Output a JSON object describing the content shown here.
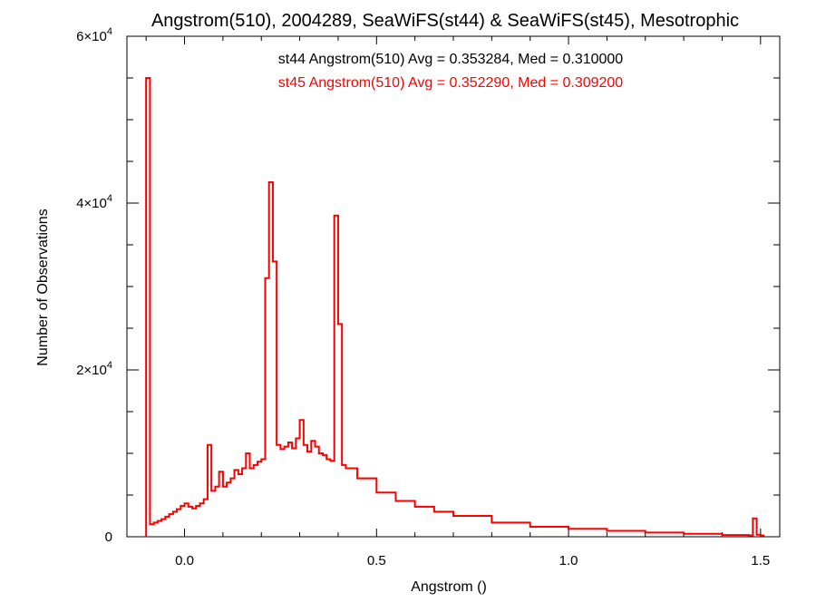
{
  "chart_data": {
    "type": "line",
    "title": "Angstrom(510), 2004289, SeaWiFS(st44) & SeaWiFS(st45), Mesotrophic",
    "xlabel": "Angstrom ()",
    "ylabel": "Number of Observations",
    "xlim": [
      -0.15,
      1.55
    ],
    "ylim": [
      0,
      60000
    ],
    "x_ticks": [
      {
        "value": 0.0,
        "label": "0.0"
      },
      {
        "value": 0.5,
        "label": "0.5"
      },
      {
        "value": 1.0,
        "label": "1.0"
      },
      {
        "value": 1.5,
        "label": "1.5"
      }
    ],
    "y_ticks": [
      {
        "value": 0,
        "base": "0",
        "exp": ""
      },
      {
        "value": 20000,
        "base": "2×10",
        "exp": "4"
      },
      {
        "value": 40000,
        "base": "4×10",
        "exp": "4"
      },
      {
        "value": 60000,
        "base": "6×10",
        "exp": "4"
      }
    ],
    "annotations": [
      {
        "text": "st44 Angstrom(510) Avg = 0.353284, Med = 0.310000",
        "color": "#000000"
      },
      {
        "text": "st45 Angstrom(510) Avg = 0.352290, Med = 0.309200",
        "color": "#ff0000"
      }
    ],
    "series": [
      {
        "color": "#000000",
        "x": [
          -0.1,
          -0.09,
          -0.08,
          -0.07,
          -0.06,
          -0.05,
          -0.04,
          -0.03,
          -0.02,
          -0.01,
          0.0,
          0.01,
          0.02,
          0.03,
          0.04,
          0.05,
          0.06,
          0.07,
          0.08,
          0.09,
          0.1,
          0.11,
          0.12,
          0.13,
          0.14,
          0.15,
          0.16,
          0.17,
          0.18,
          0.19,
          0.2,
          0.21,
          0.22,
          0.23,
          0.24,
          0.25,
          0.26,
          0.27,
          0.28,
          0.29,
          0.3,
          0.31,
          0.32,
          0.33,
          0.34,
          0.35,
          0.36,
          0.37,
          0.38,
          0.39,
          0.4,
          0.41,
          0.42,
          0.45,
          0.5,
          0.55,
          0.6,
          0.65,
          0.7,
          0.8,
          0.9,
          1.0,
          1.1,
          1.2,
          1.3,
          1.4,
          1.47,
          1.48,
          1.49,
          1.5
        ],
        "y": [
          55000,
          1500,
          1700,
          1900,
          2100,
          2400,
          2700,
          3000,
          3300,
          3700,
          4000,
          3600,
          3400,
          3700,
          4000,
          4500,
          11000,
          5500,
          6000,
          7800,
          6000,
          6500,
          7000,
          8000,
          7500,
          8200,
          10000,
          8200,
          8600,
          9000,
          9300,
          31000,
          42500,
          33000,
          11000,
          10500,
          10800,
          11300,
          10600,
          11800,
          14000,
          11000,
          10200,
          11500,
          10800,
          10000,
          9800,
          9300,
          9100,
          38500,
          25500,
          8600,
          8200,
          7000,
          5300,
          4300,
          3600,
          3000,
          2500,
          1700,
          1200,
          950,
          700,
          500,
          350,
          200,
          150,
          2200,
          250,
          150
        ]
      },
      {
        "color": "#ff0000",
        "x": [
          -0.1,
          -0.09,
          -0.08,
          -0.07,
          -0.06,
          -0.05,
          -0.04,
          -0.03,
          -0.02,
          -0.01,
          0.0,
          0.01,
          0.02,
          0.03,
          0.04,
          0.05,
          0.06,
          0.07,
          0.08,
          0.09,
          0.1,
          0.11,
          0.12,
          0.13,
          0.14,
          0.15,
          0.16,
          0.17,
          0.18,
          0.19,
          0.2,
          0.21,
          0.22,
          0.23,
          0.24,
          0.25,
          0.26,
          0.27,
          0.28,
          0.29,
          0.3,
          0.31,
          0.32,
          0.33,
          0.34,
          0.35,
          0.36,
          0.37,
          0.38,
          0.39,
          0.4,
          0.41,
          0.42,
          0.45,
          0.5,
          0.55,
          0.6,
          0.65,
          0.7,
          0.8,
          0.9,
          1.0,
          1.1,
          1.2,
          1.3,
          1.4,
          1.47,
          1.48,
          1.49,
          1.5
        ],
        "y": [
          55000,
          1500,
          1700,
          1900,
          2100,
          2400,
          2700,
          3000,
          3300,
          3700,
          4000,
          3600,
          3400,
          3700,
          4000,
          4500,
          11000,
          5500,
          6000,
          7800,
          6000,
          6500,
          7000,
          8000,
          7500,
          8200,
          10000,
          8200,
          8600,
          9000,
          9300,
          31000,
          42500,
          33000,
          11000,
          10500,
          10800,
          11300,
          10600,
          11800,
          14000,
          11000,
          10200,
          11500,
          10800,
          10000,
          9800,
          9300,
          9100,
          38500,
          25500,
          8600,
          8200,
          7000,
          5300,
          4300,
          3600,
          3000,
          2500,
          1700,
          1200,
          950,
          700,
          500,
          350,
          200,
          150,
          2200,
          250,
          150
        ]
      }
    ]
  }
}
